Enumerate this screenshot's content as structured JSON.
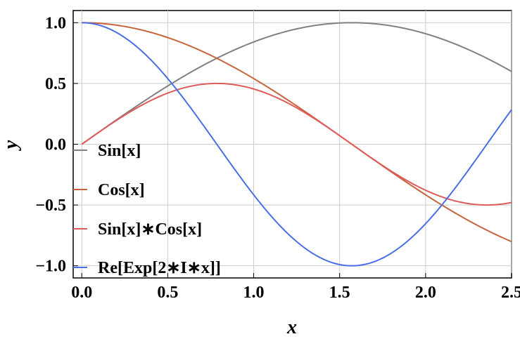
{
  "chart_data": {
    "type": "line",
    "title": "",
    "xlabel": "x",
    "ylabel": "y",
    "xlim": [
      -0.05,
      2.5
    ],
    "ylim": [
      -1.1,
      1.1
    ],
    "x_ticks": [
      0.0,
      0.5,
      1.0,
      1.5,
      2.0,
      2.5
    ],
    "x_tick_labels": [
      "0.0",
      "0.5",
      "1.0",
      "1.5",
      "2.0",
      "2.5"
    ],
    "y_ticks": [
      1.0,
      0.5,
      0.0,
      -0.5,
      -1.0
    ],
    "y_tick_labels": [
      "1.0",
      "0.5",
      "0.0",
      "−0.5",
      "−1.0"
    ],
    "grid": true,
    "legend_position": "left",
    "x_range": [
      0,
      2.5
    ],
    "series": [
      {
        "name": "Sin[x]",
        "color": "#808080",
        "function": "sin(x)"
      },
      {
        "name": "Cos[x]",
        "color": "#c8643c",
        "function": "cos(x)"
      },
      {
        "name": "Sin[x]∗Cos[x]",
        "color": "#e05a5a",
        "function": "sin(x)*cos(x)"
      },
      {
        "name": "Re[Exp[2∗I∗x]]",
        "color": "#4a6ee8",
        "function": "cos(2x)"
      }
    ]
  }
}
